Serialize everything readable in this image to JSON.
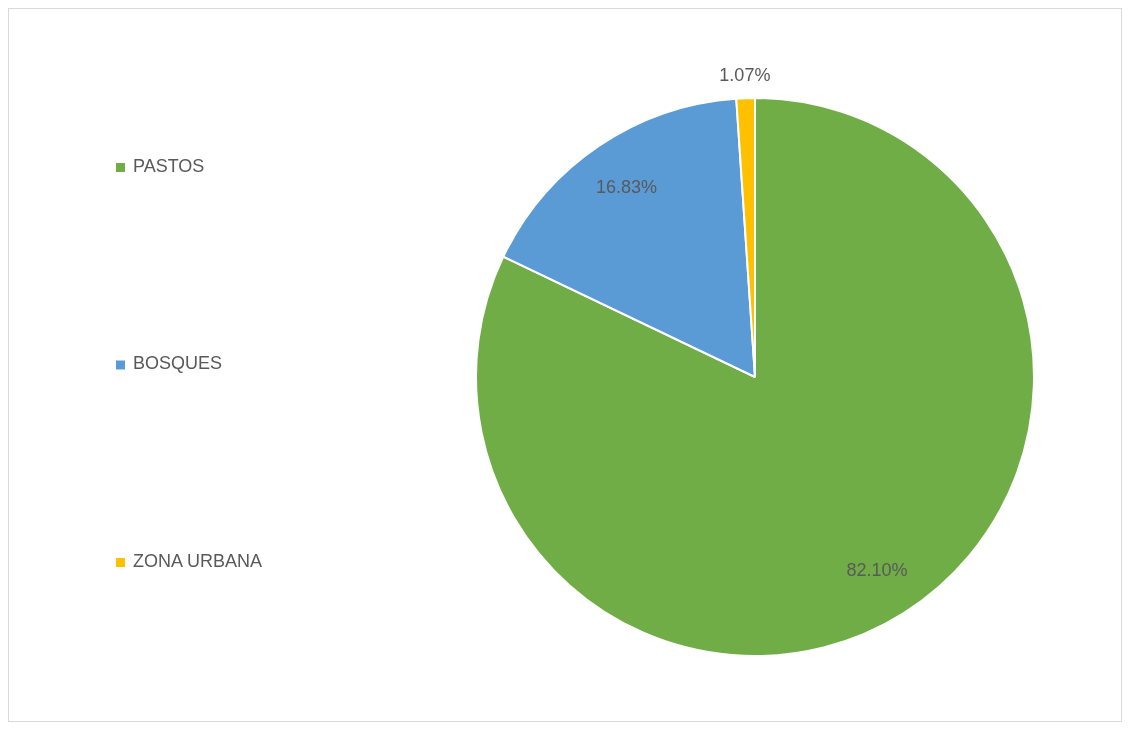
{
  "chart_data": {
    "type": "pie",
    "categories": [
      "PASTOS",
      "BOSQUES",
      "ZONA URBANA"
    ],
    "values": [
      82.1,
      16.83,
      1.07
    ],
    "colors": [
      "#70ad47",
      "#5b9bd5",
      "#ffc000"
    ],
    "value_labels": [
      "82.10%",
      "16.83%",
      "1.07%"
    ],
    "legend": "left"
  }
}
